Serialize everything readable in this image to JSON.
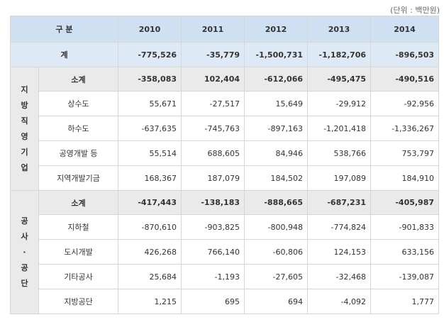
{
  "unit_note": "(단위 : 백만원)",
  "headers": {
    "category": "구 분",
    "years": [
      "2010",
      "2011",
      "2012",
      "2013",
      "2014"
    ]
  },
  "total": {
    "label": "계",
    "values": [
      "-775,526",
      "-35,779",
      "-1,500,731",
      "-1,182,706",
      "-896,503"
    ]
  },
  "local_enterprises": {
    "group_label": "지방직영기업",
    "subtotal": {
      "label": "소계",
      "values": [
        "-358,083",
        "102,404",
        "-612,066",
        "-495,475",
        "-490,516"
      ]
    },
    "rows": [
      {
        "label": "상수도",
        "values": [
          "55,671",
          "-27,517",
          "15,649",
          "-29,912",
          "-92,956"
        ]
      },
      {
        "label": "하수도",
        "values": [
          "-637,635",
          "-745,763",
          "-897,163",
          "-1,201,418",
          "-1,336,267"
        ]
      },
      {
        "label": "공영개발 등",
        "values": [
          "55,514",
          "688,605",
          "84,946",
          "538,766",
          "753,797"
        ]
      },
      {
        "label": "지역개발기금",
        "values": [
          "168,367",
          "187,079",
          "184,502",
          "197,089",
          "184,910"
        ]
      }
    ]
  },
  "public_corporations": {
    "group_label": "공사·공단",
    "subtotal": {
      "label": "소계",
      "values": [
        "-417,443",
        "-138,183",
        "-888,665",
        "-687,231",
        "-405,987"
      ]
    },
    "rows": [
      {
        "label": "지하철",
        "values": [
          "-870,610",
          "-903,825",
          "-800,948",
          "-774,824",
          "-901,833"
        ]
      },
      {
        "label": "도시개발",
        "values": [
          "426,268",
          "766,140",
          "-60,806",
          "124,153",
          "633,156"
        ]
      },
      {
        "label": "기타공사",
        "values": [
          "25,684",
          "-1,193",
          "-27,605",
          "-32,468",
          "-139,087"
        ]
      },
      {
        "label": "지방공단",
        "values": [
          "1,215",
          "695",
          "694",
          "-4,092",
          "1,777"
        ]
      }
    ]
  }
}
